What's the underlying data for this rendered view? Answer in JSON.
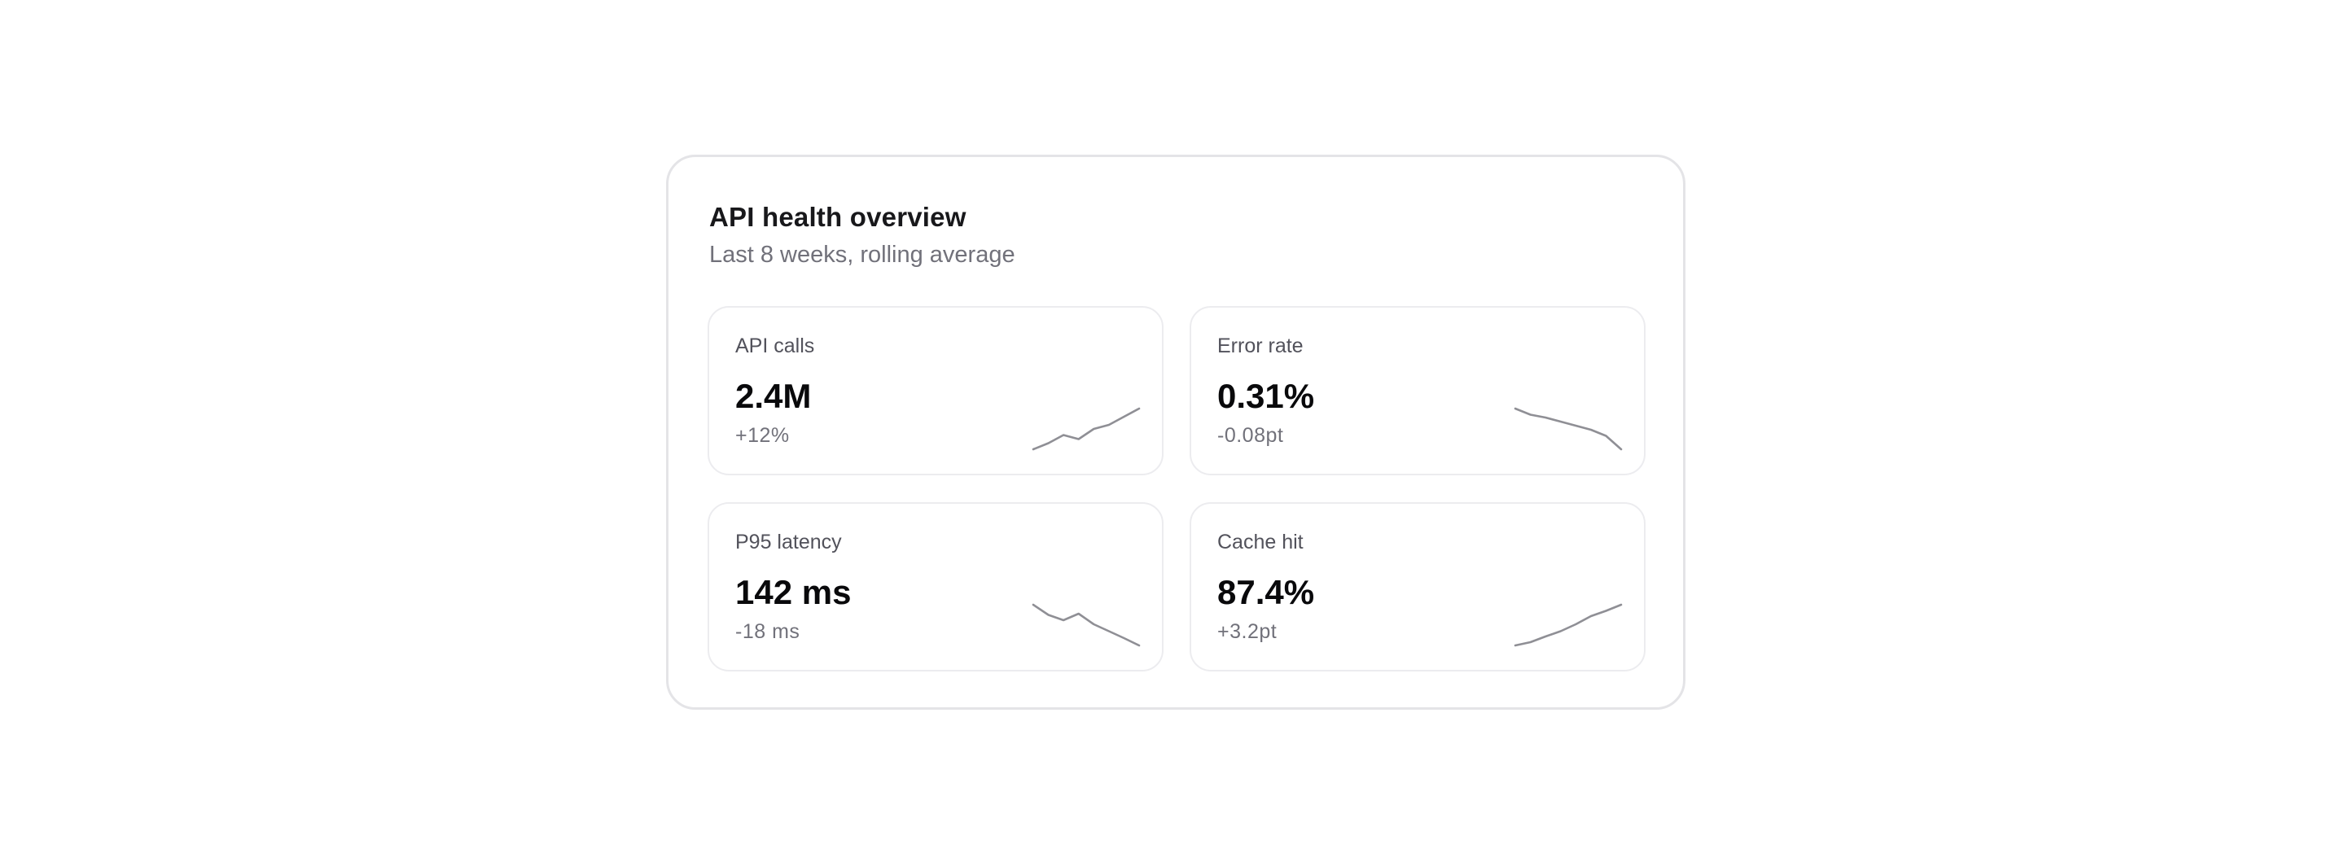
{
  "panel": {
    "title": "API health overview",
    "subtitle": "Last 8 weeks, rolling average"
  },
  "cards": [
    {
      "label": "API calls",
      "value": "2.4M",
      "delta": "+12%",
      "sparkline": [
        0.0,
        0.15,
        0.35,
        0.25,
        0.5,
        0.6,
        0.8,
        1.0
      ]
    },
    {
      "label": "Error rate",
      "value": "0.31%",
      "delta": "-0.08pt",
      "sparkline": [
        1.0,
        0.85,
        0.78,
        0.68,
        0.58,
        0.48,
        0.33,
        0.0
      ]
    },
    {
      "label": "P95 latency",
      "value": "142 ms",
      "delta": "-18 ms",
      "sparkline": [
        1.0,
        0.75,
        0.62,
        0.78,
        0.52,
        0.35,
        0.18,
        0.0
      ]
    },
    {
      "label": "Cache hit",
      "value": "87.4%",
      "delta": "+3.2pt",
      "sparkline": [
        0.0,
        0.08,
        0.22,
        0.35,
        0.52,
        0.72,
        0.85,
        1.0
      ]
    }
  ],
  "colors": {
    "sparkline": "#8f8f95",
    "border": "#e4e4e7"
  }
}
